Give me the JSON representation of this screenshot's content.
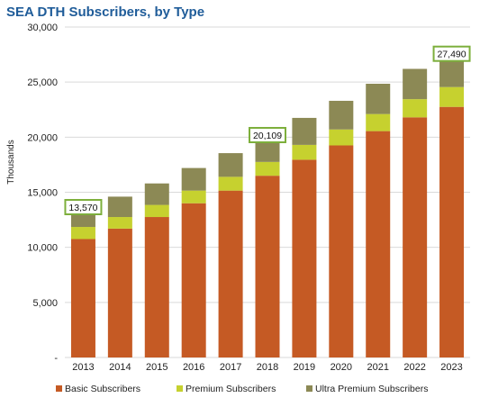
{
  "chart_data": {
    "type": "bar",
    "stacked": true,
    "title": "SEA DTH Subscribers, by Type",
    "xlabel": "",
    "ylabel": "Thousands",
    "ylim": [
      0,
      30000
    ],
    "yticks": [
      0,
      5000,
      10000,
      15000,
      20000,
      25000,
      30000
    ],
    "ytick_labels": [
      "-",
      "5,000",
      "10,000",
      "15,000",
      "20,000",
      "25,000",
      "30,000"
    ],
    "grid": true,
    "legend_position": "bottom",
    "categories": [
      "2013",
      "2014",
      "2015",
      "2016",
      "2017",
      "2018",
      "2019",
      "2020",
      "2021",
      "2022",
      "2023"
    ],
    "series": [
      {
        "name": "Basic Subscribers",
        "color": "#C55A24",
        "values": [
          10750,
          11700,
          12750,
          14000,
          15150,
          16500,
          17950,
          19250,
          20550,
          21800,
          22750
        ]
      },
      {
        "name": "Premium Subscribers",
        "color": "#C6D12F",
        "values": [
          1100,
          1050,
          1100,
          1150,
          1250,
          1250,
          1350,
          1450,
          1550,
          1650,
          1800
        ]
      },
      {
        "name": "Ultra Premium Subscribers",
        "color": "#8C8955",
        "values": [
          1720,
          1850,
          1950,
          2050,
          2150,
          2359,
          2450,
          2600,
          2750,
          2750,
          2940
        ]
      }
    ],
    "annotations": [
      {
        "category": "2013",
        "text": "13,570"
      },
      {
        "category": "2018",
        "text": "20,109"
      },
      {
        "category": "2023",
        "text": "27,490"
      }
    ],
    "colors": {
      "title": "#1F5C99",
      "grid": "#D9D9D9",
      "annotation_border": "#7DAF3C",
      "axis_text": "#222222"
    }
  }
}
